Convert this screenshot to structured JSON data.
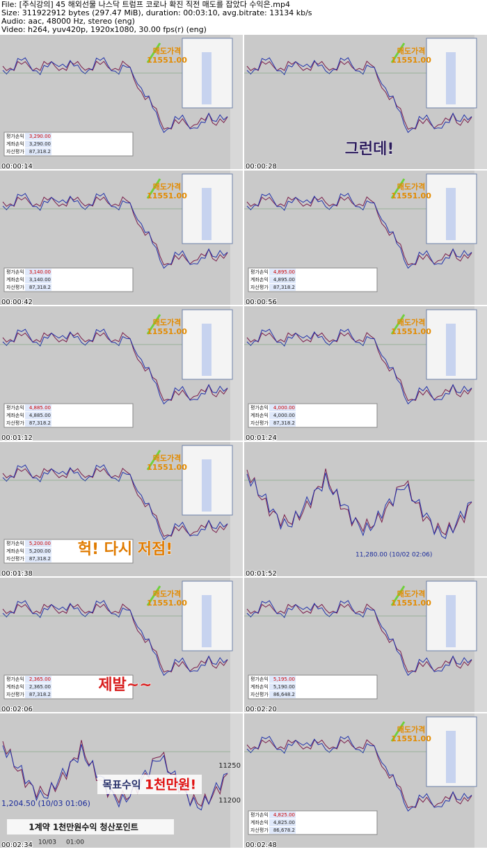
{
  "header": [
    "File: [주식강의] 45 해외선물 나스닥 트럼프 코로나 확진 직전 매도를 잡았다 수익은.mp4",
    "Size: 311922912 bytes (297.47 MiB), duration: 00:03:10, avg.bitrate: 13134 kb/s",
    "Audio: aac, 48000 Hz, stereo (eng)",
    "Video: h264, yuv420p, 1920x1080, 30.00 fps(r) (eng)"
  ],
  "table_labels": [
    "평가손익",
    "계좌손익",
    "자산평가"
  ],
  "panels": [
    {
      "time": "00:00:14",
      "sell_label": "매도가격",
      "sell_price": "11551.00",
      "table": [
        "3,290.00",
        "3,290.00",
        "87,318.2"
      ]
    },
    {
      "time": "00:00:28",
      "sell_label": "매도가격",
      "sell_price": "11551.00",
      "caption": "그런데!"
    },
    {
      "time": "00:00:42",
      "sell_label": "매도가격",
      "sell_price": "11551.00",
      "table": [
        "3,140.00",
        "3,140.00",
        "87,318.2"
      ]
    },
    {
      "time": "00:00:56",
      "sell_label": "매도가격",
      "sell_price": "11551.00",
      "table": [
        "4,895.00",
        "4,895.00",
        "87,318.2"
      ]
    },
    {
      "time": "00:01:12",
      "sell_label": "매도가격",
      "sell_price": "11551.00",
      "table": [
        "4,885.00",
        "4,885.00",
        "87,318.2"
      ]
    },
    {
      "time": "00:01:24",
      "sell_label": "매도가격",
      "sell_price": "11551.00",
      "table": [
        "4,000.00",
        "4,000.00",
        "87,318.2"
      ]
    },
    {
      "time": "00:01:38",
      "sell_label": "매도가격",
      "sell_price": "11551.00",
      "table": [
        "5,200.00",
        "5,200.00",
        "87,318.2"
      ],
      "caption": "헉! 다시 저점!"
    },
    {
      "time": "00:01:52",
      "price_note": "11,280.00 (10/02 02:06)"
    },
    {
      "time": "00:02:06",
      "sell_label": "매도가격",
      "sell_price": "11551.00",
      "table": [
        "2,365.00",
        "2,365.00",
        "87,318.2"
      ],
      "caption": "제발~~"
    },
    {
      "time": "00:02:20",
      "sell_label": "매도가격",
      "sell_price": "11551.00",
      "table": [
        "5,195.00",
        "5,190.00",
        "86,648.2"
      ]
    },
    {
      "time": "00:02:34",
      "target_label": "목표수익",
      "target_value": "1천만원!",
      "banner": "1계약 1천만원수익 청산포인트",
      "price_note": "1,204.50 (10/03 01:06)",
      "axis_labels": [
        "11250",
        "11200"
      ],
      "date_labels": [
        "10/03",
        "01:00"
      ]
    },
    {
      "time": "00:02:48",
      "sell_label": "매도가격",
      "sell_price": "11551.00",
      "table": [
        "4,825.00",
        "4,825.00",
        "86,678.2"
      ]
    }
  ]
}
